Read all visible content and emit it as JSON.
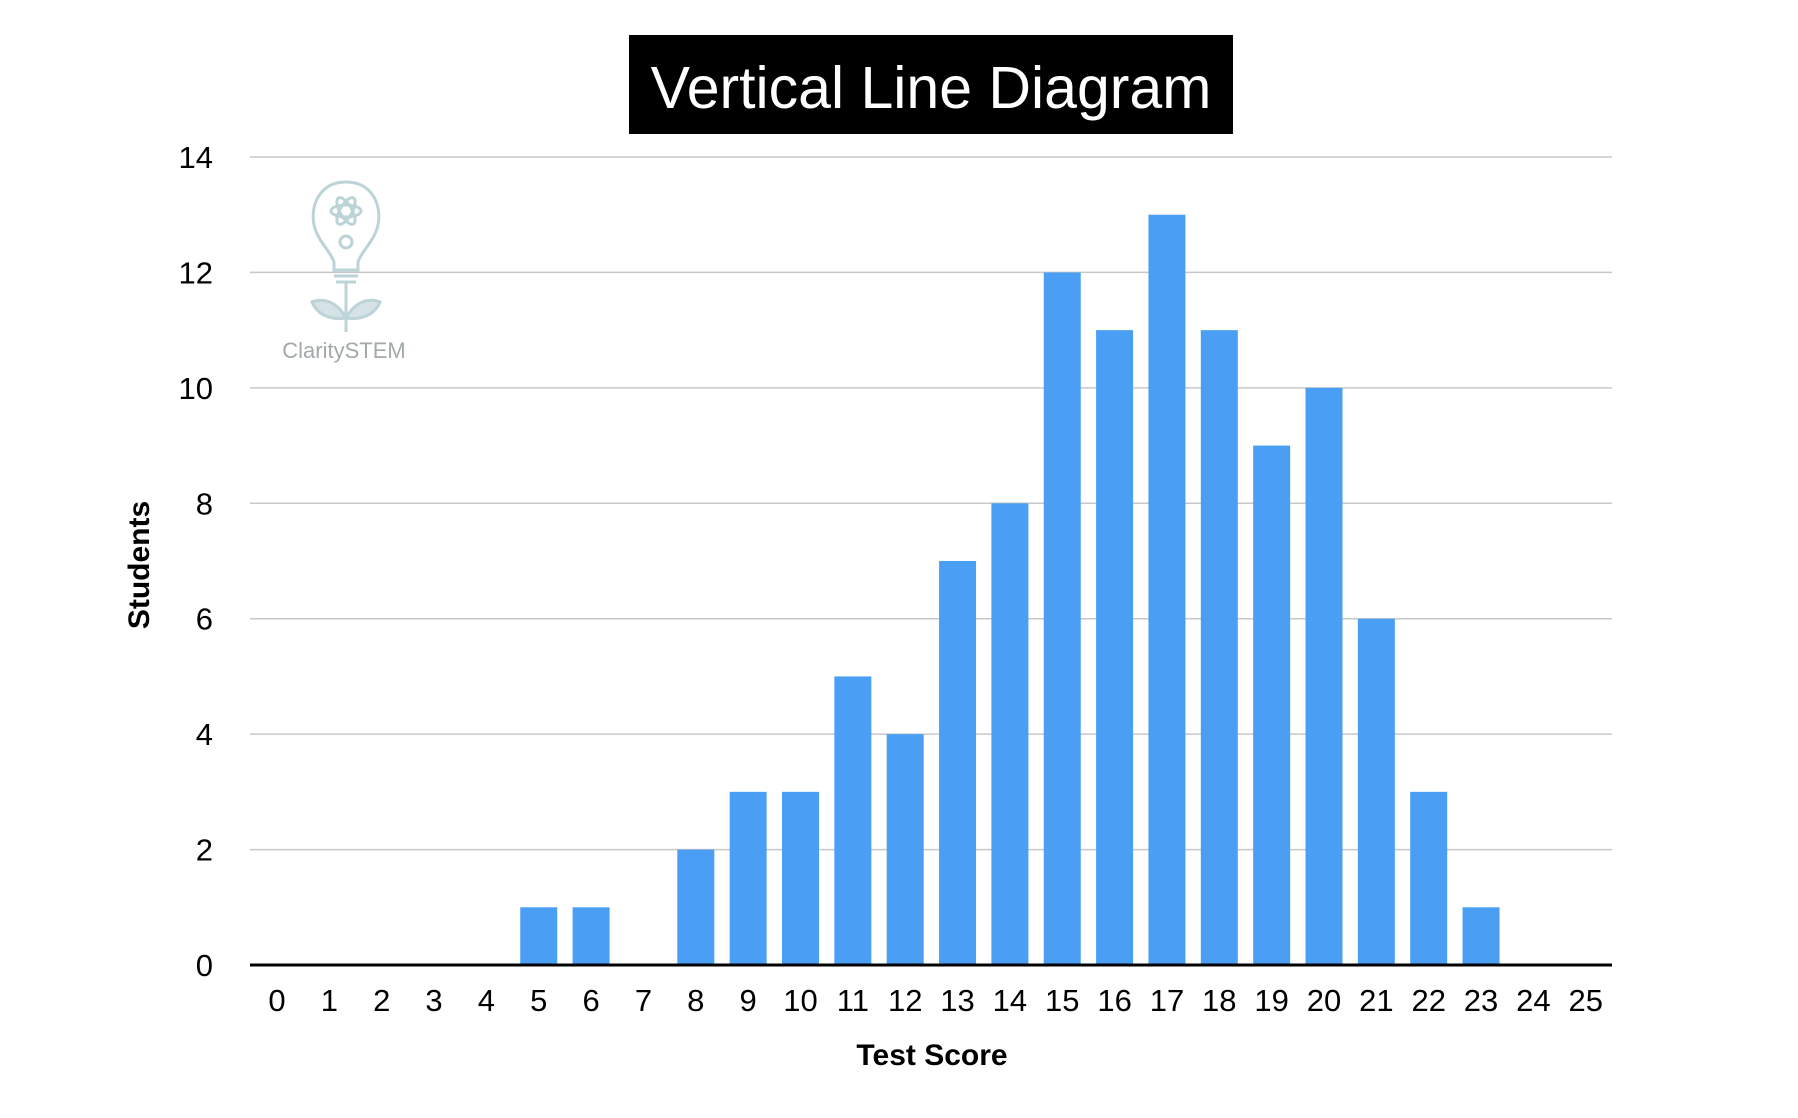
{
  "chart_data": {
    "type": "bar",
    "title": "Vertical Line Diagram",
    "xlabel": "Test Score",
    "ylabel": "Students",
    "categories": [
      "0",
      "1",
      "2",
      "3",
      "4",
      "5",
      "6",
      "7",
      "8",
      "9",
      "10",
      "11",
      "12",
      "13",
      "14",
      "15",
      "16",
      "17",
      "18",
      "19",
      "20",
      "21",
      "22",
      "23",
      "24",
      "25"
    ],
    "values": [
      0,
      0,
      0,
      0,
      0,
      1,
      1,
      0,
      2,
      3,
      3,
      5,
      4,
      7,
      8,
      12,
      11,
      13,
      11,
      9,
      10,
      6,
      3,
      1,
      0,
      0
    ],
    "yticks": [
      "0",
      "2",
      "4",
      "6",
      "8",
      "10",
      "12",
      "14"
    ],
    "ylim": [
      0,
      14
    ],
    "grid": true,
    "bar_color": "#4a9ff5",
    "grid_color": "#c8c8c8",
    "axis_color": "#000000",
    "title_bg": "#000000",
    "title_color": "#ffffff"
  },
  "logo": {
    "text": "ClaritySTEM",
    "color": "#a3a9ab",
    "icon": "lightbulb-atom-icon"
  }
}
